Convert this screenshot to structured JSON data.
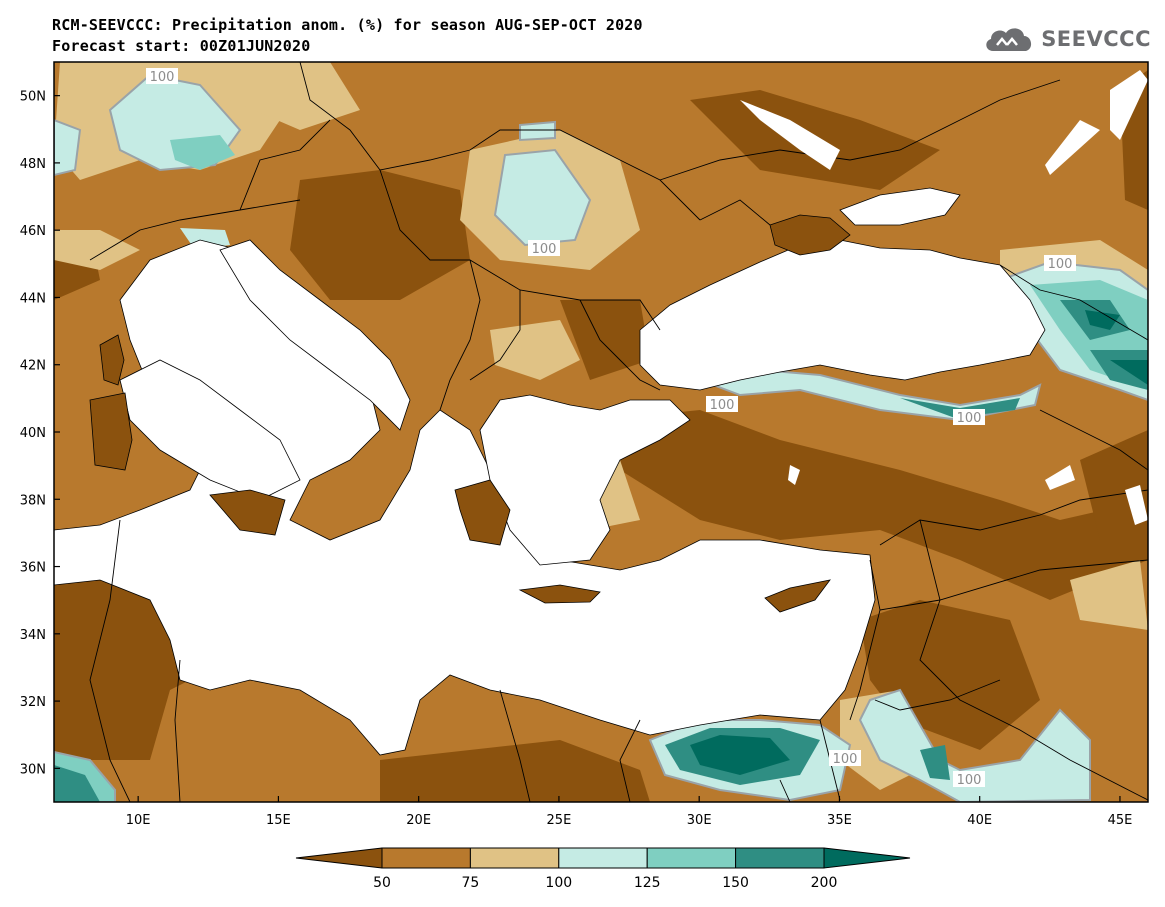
{
  "title_line1": "RCM-SEEVCCC: Precipitation anom. (%) for season AUG-SEP-OCT 2020",
  "title_line2": "Forecast start: 00Z01JUN2020",
  "logo_text": "SEEVCCC",
  "map": {
    "lon_range": [
      7,
      46
    ],
    "lat_range": [
      29,
      51
    ],
    "x_ticks": [
      "10E",
      "15E",
      "20E",
      "25E",
      "30E",
      "35E",
      "40E",
      "45E"
    ],
    "y_ticks": [
      "50N",
      "48N",
      "46N",
      "44N",
      "42N",
      "40N",
      "38N",
      "36N",
      "34N",
      "32N",
      "30N"
    ],
    "contour_label": "100"
  },
  "colorbar": {
    "levels": [
      "50",
      "75",
      "100",
      "125",
      "150",
      "200"
    ],
    "colors": [
      "#8b520e",
      "#b8792d",
      "#e0c285",
      "#c5ebe4",
      "#7fcfc1",
      "#2f8e83",
      "#006b5e"
    ]
  },
  "colors": {
    "sea": "#ffffff",
    "border": "#000000",
    "contour_line": "#9aa3a8"
  }
}
